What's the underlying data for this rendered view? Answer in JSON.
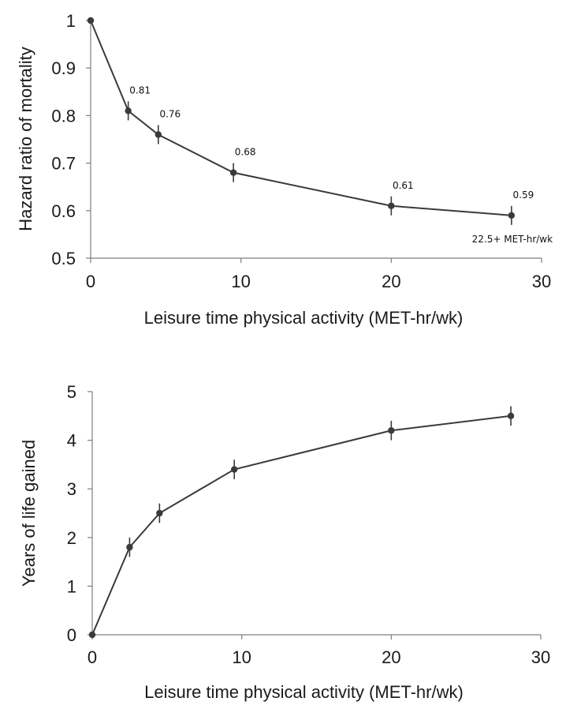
{
  "chart_data": [
    {
      "type": "line",
      "title": "",
      "xlabel": "Leisure time physical activity (MET-hr/wk)",
      "ylabel": "Hazard ratio of mortality",
      "xlim": [
        0,
        30
      ],
      "ylim": [
        0.5,
        1
      ],
      "xticks": [
        0,
        10,
        20,
        30
      ],
      "xtick_labels": [
        "0",
        "10",
        "20",
        "30"
      ],
      "yticks": [
        0.5,
        0.6,
        0.7,
        0.8,
        0.9,
        1
      ],
      "ytick_labels": [
        "0.5",
        "0.6",
        "0.7",
        "0.8",
        "0.9",
        "1"
      ],
      "grid": false,
      "series": [
        {
          "name": "Hazard ratio",
          "x": [
            0,
            2.5,
            4.5,
            9.5,
            20,
            28
          ],
          "y": [
            1,
            0.81,
            0.76,
            0.68,
            0.61,
            0.59
          ],
          "err": [
            0,
            0.02,
            0.02,
            0.02,
            0.02,
            0.02
          ],
          "data_labels": [
            "",
            "0.81",
            "0.76",
            "0.68",
            "0.61",
            "0.59"
          ]
        }
      ],
      "annotations": [
        {
          "text": "22.5+ MET-hr/wk",
          "x": 28,
          "y": 0.59
        }
      ]
    },
    {
      "type": "line",
      "title": "",
      "xlabel": "Leisure time physical activity (MET-hr/wk)",
      "ylabel": "Years of life gained",
      "xlim": [
        0,
        30
      ],
      "ylim": [
        0,
        5
      ],
      "xticks": [
        0,
        10,
        20,
        30
      ],
      "xtick_labels": [
        "0",
        "10",
        "20",
        "30"
      ],
      "yticks": [
        0,
        1,
        2,
        3,
        4,
        5
      ],
      "ytick_labels": [
        "0",
        "1",
        "2",
        "3",
        "4",
        "5"
      ],
      "grid": false,
      "series": [
        {
          "name": "Years of life gained",
          "x": [
            0,
            2.5,
            4.5,
            9.5,
            20,
            28
          ],
          "y": [
            0,
            1.8,
            2.5,
            3.4,
            4.2,
            4.5
          ],
          "err": [
            0,
            0.2,
            0.2,
            0.2,
            0.2,
            0.2
          ],
          "data_labels": []
        }
      ],
      "annotations": []
    }
  ]
}
